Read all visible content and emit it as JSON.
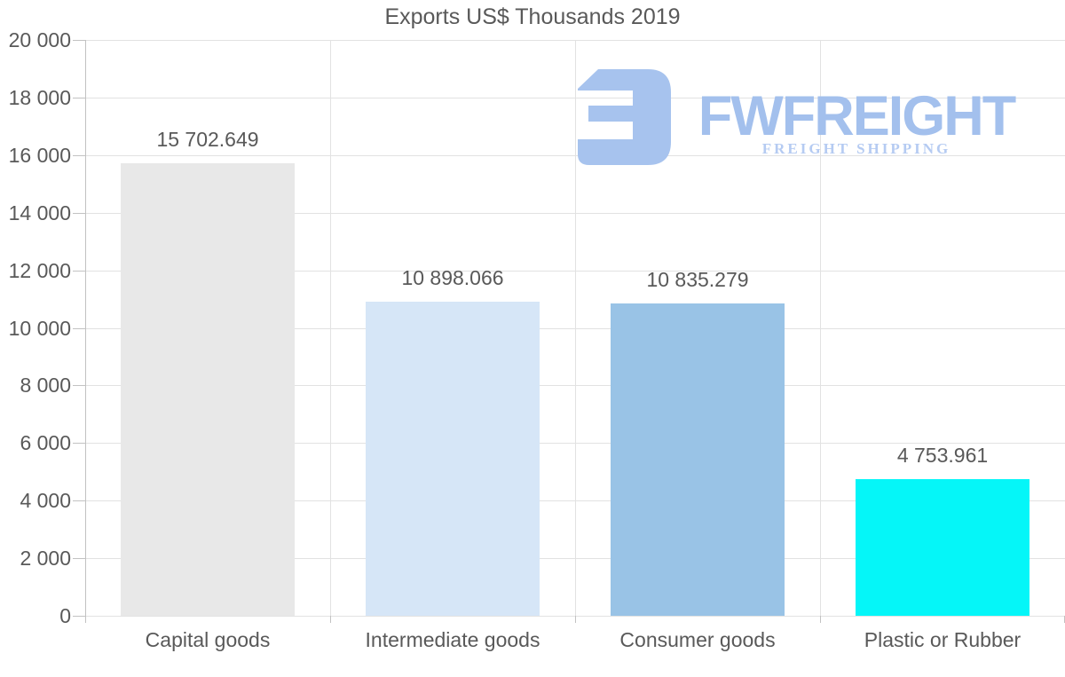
{
  "title": "Exports US$ Thousands 2019",
  "watermark": {
    "brand": "FWFREIGHT",
    "tagline": "FREIGHT SHIPPING",
    "brand_color": "#a3c0ed",
    "tagline_color": "#b5cbf2",
    "icon": "fwfreight-logo-icon",
    "icon_color": "#a7c3ee"
  },
  "colors": {
    "text": "#595959",
    "gridline": "#e2e2e2",
    "axis": "#c2c2c2",
    "background": "#ffffff"
  },
  "chart_data": {
    "type": "bar",
    "title": "Exports US$ Thousands 2019",
    "categories": [
      "Capital goods",
      "Intermediate goods",
      "Consumer goods",
      "Plastic or Rubber"
    ],
    "values": [
      15702.649,
      10898.066,
      10835.279,
      4753.961
    ],
    "value_labels": [
      "15 702.649",
      "10 898.066",
      "10 835.279",
      "4 753.961"
    ],
    "bar_colors": [
      "#e8e8e8",
      "#d6e6f7",
      "#99c3e6",
      "#05f6f8"
    ],
    "xlabel": "",
    "ylabel": "",
    "ylim": [
      0,
      20000
    ],
    "ytick_step": 2000,
    "ytick_labels": [
      "0",
      "2 000",
      "4 000",
      "6 000",
      "8 000",
      "10 000",
      "12 000",
      "14 000",
      "16 000",
      "18 000",
      "20 000"
    ],
    "grid": true,
    "legend": false
  }
}
